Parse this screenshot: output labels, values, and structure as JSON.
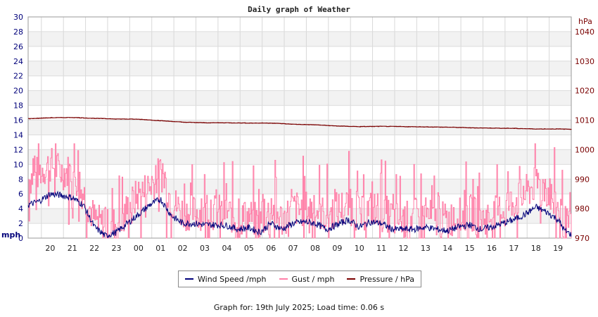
{
  "chart_data": {
    "type": "line",
    "title": "Daily graph of Weather",
    "x_tick_labels": [
      "20",
      "21",
      "22",
      "23",
      "00",
      "01",
      "02",
      "03",
      "04",
      "05",
      "06",
      "07",
      "08",
      "09",
      "10",
      "11",
      "12",
      "13",
      "14",
      "15",
      "16",
      "17",
      "18",
      "19"
    ],
    "x_range_hours": [
      0,
      24.6
    ],
    "y_left": {
      "unit": "mph",
      "ylim": [
        0,
        30
      ],
      "ticks": [
        0,
        2,
        4,
        6,
        8,
        10,
        12,
        14,
        16,
        18,
        20,
        22,
        24,
        26,
        28,
        30
      ]
    },
    "y_right": {
      "unit": "hPa",
      "ylim": [
        970,
        1045
      ],
      "ticks": [
        970,
        980,
        990,
        1000,
        1010,
        1020,
        1030,
        1040
      ]
    },
    "grid": true,
    "legend_position": "bottom",
    "series": [
      {
        "name": "Wind Speed /mph",
        "axis": "left",
        "color": "#00007a",
        "keypoints": [
          [
            0,
            4.5
          ],
          [
            0.5,
            5.0
          ],
          [
            1,
            6.0
          ],
          [
            1.5,
            5.8
          ],
          [
            2,
            5.5
          ],
          [
            2.5,
            4.5
          ],
          [
            3,
            1.5
          ],
          [
            3.5,
            0.3
          ],
          [
            4,
            0.8
          ],
          [
            4.5,
            2.0
          ],
          [
            5,
            3.2
          ],
          [
            5.5,
            4.5
          ],
          [
            6,
            5.3
          ],
          [
            6.5,
            3.0
          ],
          [
            7,
            2.0
          ],
          [
            7.5,
            2.0
          ],
          [
            8,
            1.8
          ],
          [
            8.5,
            1.8
          ],
          [
            9,
            1.7
          ],
          [
            9.5,
            1.2
          ],
          [
            10,
            1.4
          ],
          [
            10.5,
            0.8
          ],
          [
            11,
            2.0
          ],
          [
            11.5,
            1.2
          ],
          [
            12,
            2.0
          ],
          [
            12.5,
            2.2
          ],
          [
            13,
            2.0
          ],
          [
            13.5,
            1.2
          ],
          [
            14,
            1.8
          ],
          [
            14.5,
            2.5
          ],
          [
            15,
            1.5
          ],
          [
            15.5,
            2.2
          ],
          [
            16,
            2.0
          ],
          [
            16.5,
            1.2
          ],
          [
            17,
            1.2
          ],
          [
            17.5,
            1.2
          ],
          [
            18,
            1.5
          ],
          [
            18.5,
            1.2
          ],
          [
            19,
            1.0
          ],
          [
            19.5,
            1.5
          ],
          [
            20,
            1.8
          ],
          [
            20.5,
            1.2
          ],
          [
            21,
            1.5
          ],
          [
            21.5,
            2.0
          ],
          [
            22,
            2.5
          ],
          [
            22.5,
            3.2
          ],
          [
            23,
            4.2
          ],
          [
            23.5,
            3.5
          ],
          [
            24,
            2.5
          ],
          [
            24.3,
            1.0
          ],
          [
            24.6,
            0.5
          ]
        ]
      },
      {
        "name": "Gust / mph",
        "axis": "left",
        "color": "#ff7fa8",
        "keypoints": [
          [
            0,
            8
          ],
          [
            0.5,
            9
          ],
          [
            1,
            10
          ],
          [
            1.5,
            9
          ],
          [
            2,
            9
          ],
          [
            2.5,
            6
          ],
          [
            3,
            2.5
          ],
          [
            3.5,
            1.5
          ],
          [
            4,
            2
          ],
          [
            4.5,
            4
          ],
          [
            5,
            6
          ],
          [
            5.5,
            7
          ],
          [
            6,
            9
          ],
          [
            6.5,
            5
          ],
          [
            7,
            3.5
          ],
          [
            7.5,
            3.5
          ],
          [
            8,
            3.5
          ],
          [
            8.5,
            3.5
          ],
          [
            9,
            3.5
          ],
          [
            9.5,
            2.5
          ],
          [
            10,
            3
          ],
          [
            10.5,
            2
          ],
          [
            11,
            4
          ],
          [
            11.5,
            2.5
          ],
          [
            12,
            4
          ],
          [
            12.5,
            4
          ],
          [
            13,
            4
          ],
          [
            13.5,
            3
          ],
          [
            14,
            4
          ],
          [
            14.5,
            4.5
          ],
          [
            15,
            3
          ],
          [
            15.5,
            4
          ],
          [
            16,
            4
          ],
          [
            16.5,
            2.5
          ],
          [
            17,
            2.5
          ],
          [
            17.5,
            3
          ],
          [
            18,
            3
          ],
          [
            18.5,
            2.5
          ],
          [
            19,
            2.5
          ],
          [
            19.5,
            3
          ],
          [
            20,
            3.5
          ],
          [
            20.5,
            2.5
          ],
          [
            21,
            3
          ],
          [
            21.5,
            4
          ],
          [
            22,
            5
          ],
          [
            22.5,
            6
          ],
          [
            23,
            7.5
          ],
          [
            23.5,
            6.5
          ],
          [
            24,
            4
          ],
          [
            24.3,
            2
          ],
          [
            24.6,
            1
          ]
        ]
      },
      {
        "name": "Pressure / hPa",
        "axis": "right",
        "color": "#7a0000",
        "keypoints": [
          [
            0,
            1010.5
          ],
          [
            1,
            1010.8
          ],
          [
            2,
            1010.9
          ],
          [
            3,
            1010.6
          ],
          [
            4,
            1010.4
          ],
          [
            5,
            1010.3
          ],
          [
            6,
            1009.8
          ],
          [
            7,
            1009.3
          ],
          [
            8,
            1009.1
          ],
          [
            9,
            1009.1
          ],
          [
            10,
            1009.0
          ],
          [
            11,
            1009.0
          ],
          [
            12,
            1008.6
          ],
          [
            13,
            1008.4
          ],
          [
            14,
            1008.0
          ],
          [
            15,
            1007.8
          ],
          [
            16,
            1007.9
          ],
          [
            17,
            1007.8
          ],
          [
            18,
            1007.7
          ],
          [
            19,
            1007.6
          ],
          [
            20,
            1007.4
          ],
          [
            21,
            1007.3
          ],
          [
            22,
            1007.2
          ],
          [
            23,
            1007.0
          ],
          [
            24,
            1007.0
          ],
          [
            24.6,
            1006.9
          ]
        ]
      }
    ]
  },
  "legend": {
    "items": [
      {
        "label": "Wind Speed /mph",
        "color": "#00007a"
      },
      {
        "label": "Gust / mph",
        "color": "#ff7fa8"
      },
      {
        "label": "Pressure / hPa",
        "color": "#7a0000"
      }
    ]
  },
  "footer": {
    "text": "Graph for: 19th July 2025; Load time: 0.06 s"
  }
}
